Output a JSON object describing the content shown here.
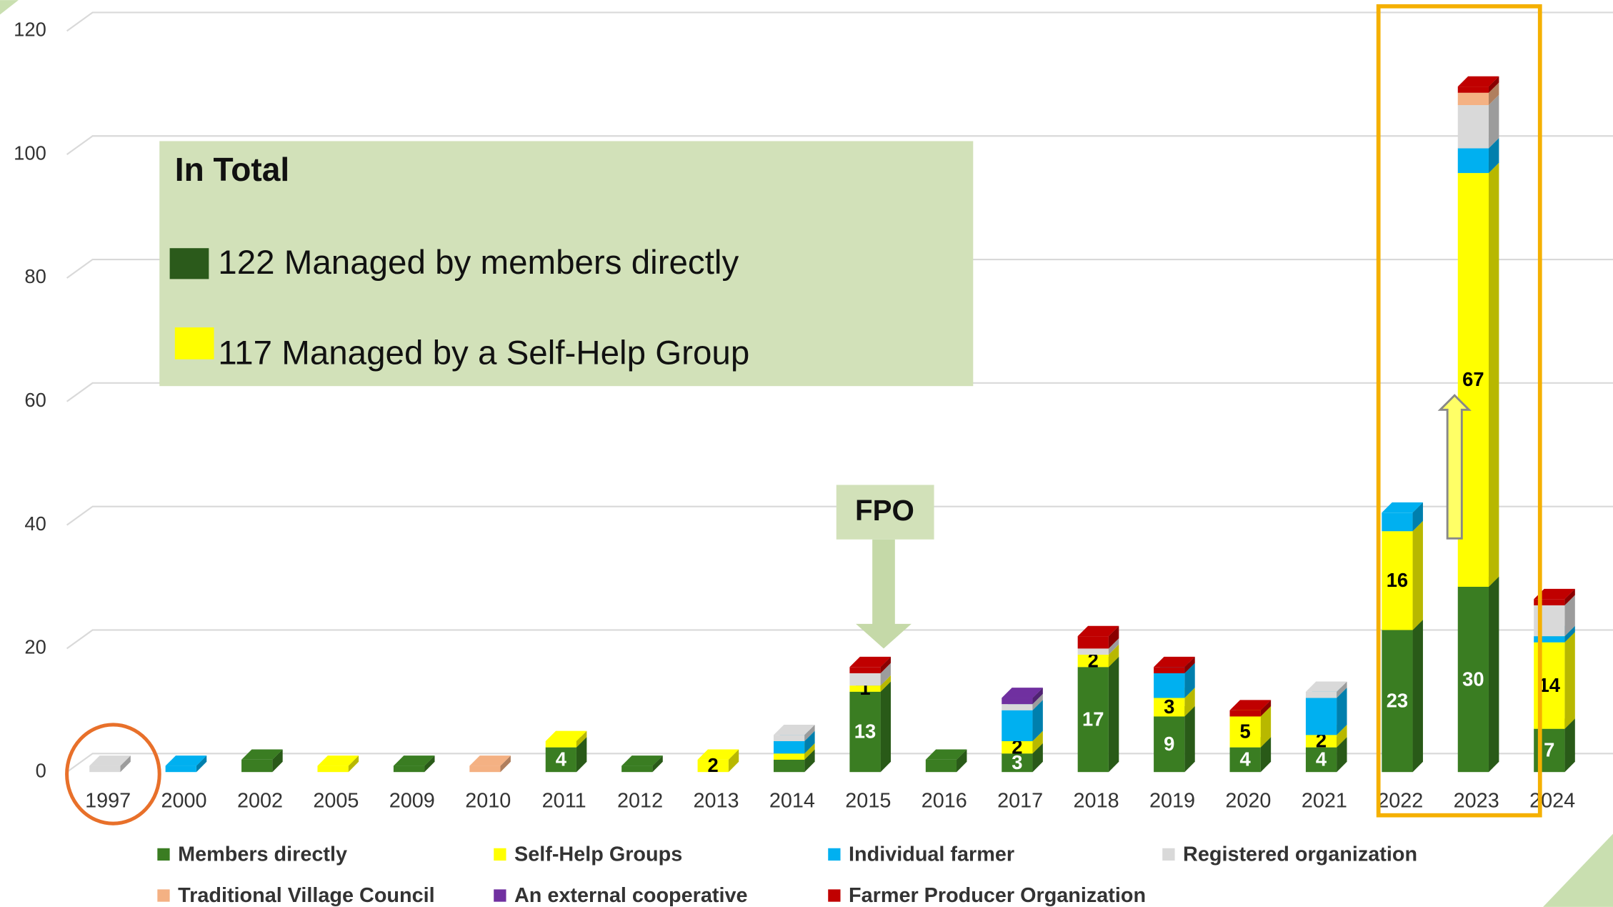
{
  "chart_data": {
    "type": "stacked_bar_3d",
    "categories": [
      "1997",
      "2000",
      "2002",
      "2005",
      "2009",
      "2010",
      "2011",
      "2012",
      "2013",
      "2014",
      "2015",
      "2016",
      "2017",
      "2018",
      "2019",
      "2020",
      "2021",
      "2022",
      "2023",
      "2024"
    ],
    "series": [
      {
        "name": "Members directly",
        "color": "#3a7d22",
        "label_color": "#ffffff",
        "values": [
          0,
          0,
          2,
          0,
          1,
          0,
          4,
          1,
          0,
          2,
          13,
          2,
          3,
          17,
          9,
          4,
          4,
          23,
          30,
          7
        ],
        "value_labels": [
          null,
          null,
          null,
          null,
          null,
          null,
          "4",
          null,
          null,
          null,
          "13",
          null,
          "3",
          "17",
          "9",
          "4",
          "4",
          "23",
          "30",
          "7"
        ]
      },
      {
        "name": "Self-Help Groups",
        "color": "#ffff00",
        "label_color": "#000000",
        "values": [
          0,
          0,
          0,
          1,
          0,
          0,
          1,
          0,
          2,
          1,
          1,
          0,
          2,
          2,
          3,
          5,
          2,
          16,
          67,
          14
        ],
        "value_labels": [
          null,
          null,
          null,
          null,
          null,
          null,
          null,
          null,
          "2",
          null,
          "1",
          null,
          "2",
          "2",
          "3",
          "5",
          "2",
          "16",
          "67",
          "14"
        ]
      },
      {
        "name": "Individual farmer",
        "color": "#00b0f0",
        "values": [
          0,
          1,
          0,
          0,
          0,
          0,
          0,
          0,
          0,
          2,
          0,
          0,
          5,
          0,
          4,
          0,
          6,
          3,
          4,
          1
        ]
      },
      {
        "name": "Registered organization",
        "color": "#d9d9d9",
        "values": [
          1,
          0,
          0,
          0,
          0,
          0,
          0,
          0,
          0,
          1,
          2,
          0,
          1,
          1,
          0,
          0,
          1,
          0,
          7,
          5
        ]
      },
      {
        "name": "Traditional Village Council",
        "color": "#f4b183",
        "values": [
          0,
          0,
          0,
          0,
          0,
          1,
          0,
          0,
          0,
          0,
          0,
          0,
          0,
          0,
          0,
          0,
          0,
          0,
          2,
          0
        ]
      },
      {
        "name": "An external cooperative",
        "color": "#7030a0",
        "values": [
          0,
          0,
          0,
          0,
          0,
          0,
          0,
          0,
          0,
          0,
          0,
          0,
          1,
          0,
          0,
          0,
          0,
          0,
          0,
          0
        ]
      },
      {
        "name": "Farmer Producer Organization",
        "color": "#c00000",
        "values": [
          0,
          0,
          0,
          0,
          0,
          0,
          0,
          0,
          0,
          0,
          1,
          0,
          0,
          2,
          1,
          1,
          0,
          0,
          1,
          1
        ]
      }
    ],
    "ylim": [
      0,
      120
    ],
    "yticks": [
      0,
      20,
      40,
      60,
      80,
      100,
      120
    ],
    "grid": true,
    "legend": "bottom",
    "annotations": {
      "total_title": "In Total",
      "members_total": "122 Managed by members directly",
      "shg_total": "117 Managed by a Self-Help Group",
      "fpo": "FPO"
    }
  }
}
